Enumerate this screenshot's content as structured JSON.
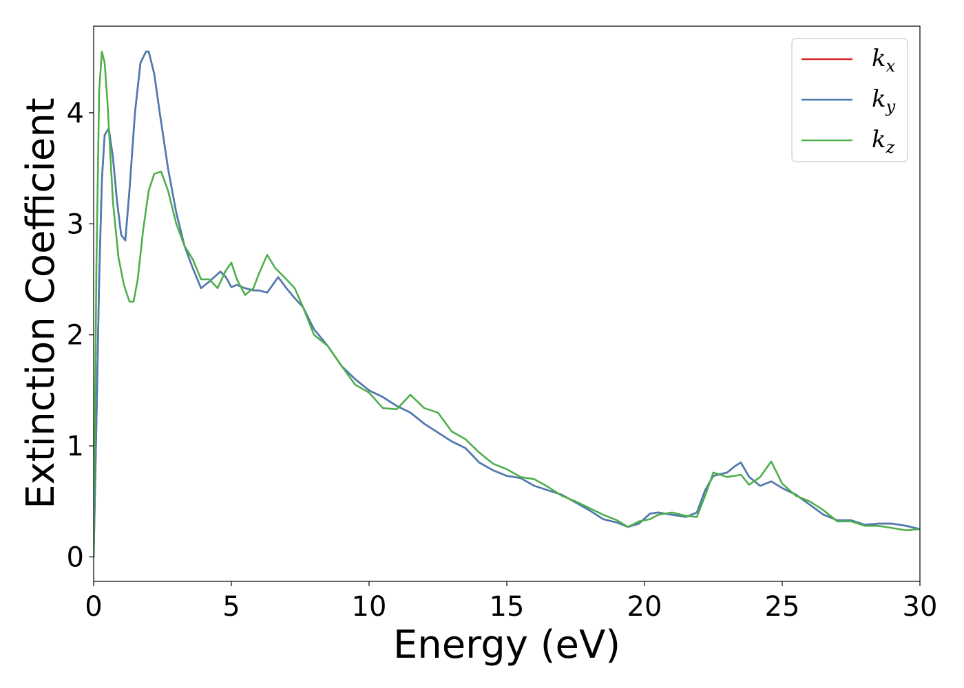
{
  "chart_data": {
    "type": "line",
    "title": "",
    "xlabel": "Energy (eV)",
    "ylabel": "Extinction Coefficient",
    "xlim": [
      0,
      30
    ],
    "ylim": [
      -0.22,
      4.78
    ],
    "x_ticks": [
      0,
      5,
      10,
      15,
      20,
      25,
      30
    ],
    "y_ticks": [
      0,
      1,
      2,
      3,
      4
    ],
    "x_tick_labels": [
      "0",
      "5",
      "10",
      "15",
      "20",
      "25",
      "30"
    ],
    "y_tick_labels": [
      "0",
      "1",
      "2",
      "3",
      "4"
    ],
    "grid": false,
    "legend_position": "top-right",
    "series": [
      {
        "name": "k",
        "subscript": "x",
        "color": "#d62728",
        "x": [
          0,
          0.1,
          0.2,
          0.3,
          0.4,
          0.55,
          0.7,
          0.85,
          1.0,
          1.15,
          1.3,
          1.5,
          1.7,
          1.9,
          2.0,
          2.2,
          2.4,
          2.7,
          3.0,
          3.3,
          3.6,
          3.9,
          4.2,
          4.6,
          4.8,
          5.0,
          5.2,
          5.5,
          5.8,
          6.0,
          6.3,
          6.7,
          7.0,
          7.3,
          7.6,
          8.0,
          8.5,
          9.0,
          9.5,
          10.0,
          10.5,
          11.0,
          11.5,
          12.0,
          12.5,
          13.0,
          13.5,
          14.0,
          14.5,
          15.0,
          15.5,
          16.0,
          16.5,
          17.0,
          17.5,
          18.0,
          18.5,
          19.0,
          19.4,
          19.8,
          20.2,
          20.5,
          21.0,
          21.5,
          21.9,
          22.2,
          22.5,
          23.0,
          23.3,
          23.5,
          23.8,
          24.2,
          24.6,
          25.0,
          25.5,
          26.0,
          26.5,
          27.0,
          27.5,
          28.0,
          28.5,
          29.0,
          29.5,
          30.0
        ],
        "y": [
          0.0,
          1.2,
          2.5,
          3.4,
          3.8,
          3.86,
          3.6,
          3.2,
          2.9,
          2.85,
          3.3,
          4.0,
          4.45,
          4.55,
          4.55,
          4.35,
          4.0,
          3.5,
          3.1,
          2.8,
          2.6,
          2.42,
          2.48,
          2.57,
          2.52,
          2.43,
          2.45,
          2.42,
          2.4,
          2.4,
          2.38,
          2.52,
          2.42,
          2.33,
          2.25,
          2.05,
          1.9,
          1.72,
          1.6,
          1.5,
          1.44,
          1.36,
          1.3,
          1.2,
          1.12,
          1.04,
          0.98,
          0.85,
          0.78,
          0.73,
          0.71,
          0.64,
          0.6,
          0.56,
          0.49,
          0.42,
          0.34,
          0.31,
          0.27,
          0.3,
          0.39,
          0.4,
          0.38,
          0.36,
          0.4,
          0.6,
          0.73,
          0.76,
          0.82,
          0.85,
          0.72,
          0.64,
          0.68,
          0.62,
          0.56,
          0.47,
          0.38,
          0.33,
          0.33,
          0.29,
          0.3,
          0.3,
          0.28,
          0.25
        ]
      },
      {
        "name": "k",
        "subscript": "y",
        "color": "#4a7db4",
        "x": [
          0,
          0.1,
          0.2,
          0.3,
          0.4,
          0.55,
          0.7,
          0.85,
          1.0,
          1.15,
          1.3,
          1.5,
          1.7,
          1.9,
          2.0,
          2.2,
          2.4,
          2.7,
          3.0,
          3.3,
          3.6,
          3.9,
          4.2,
          4.6,
          4.8,
          5.0,
          5.2,
          5.5,
          5.8,
          6.0,
          6.3,
          6.7,
          7.0,
          7.3,
          7.6,
          8.0,
          8.5,
          9.0,
          9.5,
          10.0,
          10.5,
          11.0,
          11.5,
          12.0,
          12.5,
          13.0,
          13.5,
          14.0,
          14.5,
          15.0,
          15.5,
          16.0,
          16.5,
          17.0,
          17.5,
          18.0,
          18.5,
          19.0,
          19.4,
          19.8,
          20.2,
          20.5,
          21.0,
          21.5,
          21.9,
          22.2,
          22.5,
          23.0,
          23.3,
          23.5,
          23.8,
          24.2,
          24.6,
          25.0,
          25.5,
          26.0,
          26.5,
          27.0,
          27.5,
          28.0,
          28.5,
          29.0,
          29.5,
          30.0
        ],
        "y": [
          0.0,
          1.2,
          2.5,
          3.4,
          3.8,
          3.86,
          3.6,
          3.2,
          2.9,
          2.85,
          3.3,
          4.0,
          4.45,
          4.55,
          4.55,
          4.35,
          4.0,
          3.5,
          3.1,
          2.8,
          2.6,
          2.42,
          2.48,
          2.57,
          2.52,
          2.43,
          2.45,
          2.42,
          2.4,
          2.4,
          2.38,
          2.52,
          2.42,
          2.33,
          2.25,
          2.05,
          1.9,
          1.72,
          1.6,
          1.5,
          1.44,
          1.36,
          1.3,
          1.2,
          1.12,
          1.04,
          0.98,
          0.85,
          0.78,
          0.73,
          0.71,
          0.64,
          0.6,
          0.56,
          0.49,
          0.42,
          0.34,
          0.31,
          0.27,
          0.3,
          0.39,
          0.4,
          0.38,
          0.36,
          0.4,
          0.6,
          0.73,
          0.76,
          0.82,
          0.85,
          0.72,
          0.64,
          0.68,
          0.62,
          0.56,
          0.47,
          0.38,
          0.33,
          0.33,
          0.29,
          0.3,
          0.3,
          0.28,
          0.25
        ]
      },
      {
        "name": "k",
        "subscript": "z",
        "color": "#4daf4a",
        "x": [
          0,
          0.1,
          0.2,
          0.3,
          0.4,
          0.5,
          0.7,
          0.9,
          1.1,
          1.3,
          1.45,
          1.6,
          1.8,
          2.0,
          2.2,
          2.45,
          2.7,
          3.0,
          3.3,
          3.6,
          3.9,
          4.2,
          4.5,
          4.8,
          5.0,
          5.2,
          5.5,
          5.8,
          6.0,
          6.3,
          6.6,
          7.0,
          7.3,
          7.6,
          8.0,
          8.5,
          9.0,
          9.5,
          10.0,
          10.5,
          11.0,
          11.5,
          12.0,
          12.5,
          13.0,
          13.5,
          14.0,
          14.5,
          15.0,
          15.5,
          16.0,
          16.5,
          17.0,
          17.5,
          18.0,
          18.5,
          19.0,
          19.4,
          19.8,
          20.2,
          20.5,
          21.0,
          21.5,
          21.9,
          22.2,
          22.5,
          23.0,
          23.5,
          23.8,
          24.2,
          24.6,
          25.0,
          25.5,
          26.0,
          26.5,
          27.0,
          27.5,
          28.0,
          28.5,
          29.0,
          29.5,
          30.0
        ],
        "y": [
          0.0,
          2.6,
          4.2,
          4.55,
          4.45,
          4.1,
          3.2,
          2.7,
          2.45,
          2.3,
          2.3,
          2.5,
          2.95,
          3.3,
          3.45,
          3.47,
          3.3,
          3.0,
          2.8,
          2.68,
          2.5,
          2.5,
          2.42,
          2.58,
          2.65,
          2.5,
          2.36,
          2.42,
          2.55,
          2.72,
          2.6,
          2.5,
          2.42,
          2.25,
          2.0,
          1.9,
          1.72,
          1.55,
          1.48,
          1.34,
          1.33,
          1.46,
          1.34,
          1.3,
          1.13,
          1.06,
          0.94,
          0.84,
          0.79,
          0.72,
          0.7,
          0.63,
          0.55,
          0.5,
          0.44,
          0.38,
          0.33,
          0.27,
          0.32,
          0.34,
          0.38,
          0.4,
          0.37,
          0.36,
          0.55,
          0.76,
          0.72,
          0.74,
          0.65,
          0.72,
          0.86,
          0.66,
          0.55,
          0.5,
          0.42,
          0.32,
          0.32,
          0.28,
          0.28,
          0.26,
          0.24,
          0.25
        ]
      }
    ]
  }
}
